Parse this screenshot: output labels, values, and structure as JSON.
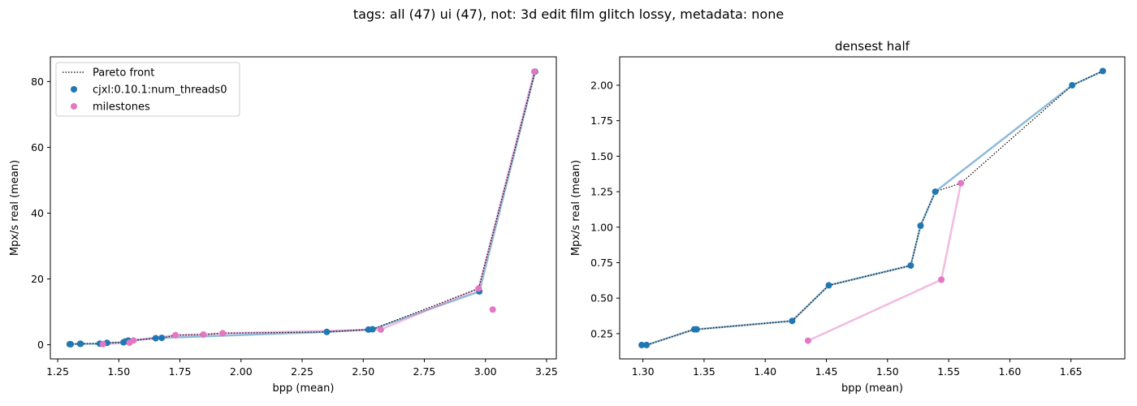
{
  "suptitle": "tags: all (47) ui (47), not: 3d edit film glitch lossy, metadata: none",
  "colors": {
    "series_blue": "#1f77b4",
    "series_pink": "#e377c2",
    "pareto": "#000000"
  },
  "chart_data": [
    {
      "type": "scatter",
      "title": "",
      "xlabel": "bpp (mean)",
      "ylabel": "Mpx/s real (mean)",
      "xlim": [
        1.22,
        3.29
      ],
      "ylim": [
        -4.3,
        87.5
      ],
      "xticks": [
        "1.25",
        "1.50",
        "1.75",
        "2.00",
        "2.25",
        "2.50",
        "2.75",
        "3.00",
        "3.25"
      ],
      "yticks": [
        "0",
        "20",
        "40",
        "60",
        "80"
      ],
      "grid": false,
      "legend_position": "upper left",
      "legend": [
        {
          "label": "Pareto front",
          "kind": "line"
        },
        {
          "label": "cjxl:0.10.1:num_threads0",
          "kind": "marker"
        },
        {
          "label": "milestones",
          "kind": "marker"
        }
      ],
      "series": [
        {
          "name": "cjxl:0.10.1:num_threads0",
          "color_key": "series_blue",
          "points": [
            [
              1.299,
              0.17
            ],
            [
              1.303,
              0.17
            ],
            [
              1.342,
              0.28
            ],
            [
              1.344,
              0.28
            ],
            [
              1.422,
              0.34
            ],
            [
              1.452,
              0.59
            ],
            [
              1.519,
              0.73
            ],
            [
              1.527,
              1.01
            ],
            [
              1.539,
              1.25
            ],
            [
              1.651,
              2.0
            ],
            [
              1.676,
              2.1
            ],
            [
              2.351,
              3.9
            ],
            [
              2.521,
              4.6
            ],
            [
              2.538,
              4.7
            ],
            [
              2.975,
              16.2
            ],
            [
              3.203,
              83.0
            ]
          ],
          "line_points": [
            [
              1.299,
              0.17
            ],
            [
              1.303,
              0.17
            ],
            [
              1.342,
              0.28
            ],
            [
              1.344,
              0.28
            ],
            [
              1.422,
              0.34
            ],
            [
              1.452,
              0.59
            ],
            [
              1.519,
              0.73
            ],
            [
              1.527,
              1.01
            ],
            [
              1.539,
              1.25
            ],
            [
              1.651,
              2.0
            ],
            [
              1.676,
              2.1
            ],
            [
              2.351,
              3.9
            ],
            [
              2.521,
              4.6
            ],
            [
              2.538,
              4.7
            ],
            [
              2.975,
              16.2
            ],
            [
              3.203,
              83.0
            ]
          ]
        },
        {
          "name": "milestones",
          "color_key": "series_pink",
          "points": [
            [
              1.435,
              0.2
            ],
            [
              1.544,
              0.63
            ],
            [
              1.56,
              1.31
            ],
            [
              1.732,
              2.9
            ],
            [
              1.846,
              3.1
            ],
            [
              1.925,
              3.5
            ],
            [
              2.572,
              4.6
            ],
            [
              2.972,
              17.1
            ],
            [
              3.03,
              10.7
            ],
            [
              3.2,
              83.0
            ]
          ],
          "line_points": [
            [
              1.435,
              0.2
            ],
            [
              1.544,
              0.63
            ],
            [
              1.56,
              1.31
            ],
            [
              1.732,
              2.9
            ],
            [
              1.846,
              3.1
            ],
            [
              1.925,
              3.5
            ],
            [
              2.572,
              4.6
            ],
            [
              2.972,
              17.1
            ],
            [
              3.2,
              83.0
            ]
          ]
        }
      ],
      "pareto_front": [
        [
          1.299,
          0.17
        ],
        [
          1.303,
          0.17
        ],
        [
          1.342,
          0.28
        ],
        [
          1.344,
          0.28
        ],
        [
          1.422,
          0.34
        ],
        [
          1.452,
          0.59
        ],
        [
          1.519,
          0.73
        ],
        [
          1.527,
          1.01
        ],
        [
          1.539,
          1.25
        ],
        [
          1.56,
          1.31
        ],
        [
          1.651,
          2.0
        ],
        [
          1.676,
          2.1
        ],
        [
          1.732,
          2.9
        ],
        [
          1.846,
          3.1
        ],
        [
          1.925,
          3.5
        ],
        [
          2.351,
          3.9
        ],
        [
          2.521,
          4.6
        ],
        [
          2.538,
          4.7
        ],
        [
          2.972,
          17.1
        ],
        [
          3.203,
          83.0
        ]
      ]
    },
    {
      "type": "scatter",
      "title": "densest half",
      "xlabel": "bpp (mean)",
      "ylabel": "Mpx/s real (mean)",
      "xlim": [
        1.281,
        1.694
      ],
      "ylim": [
        0.072,
        2.2
      ],
      "xticks": [
        "1.30",
        "1.35",
        "1.40",
        "1.45",
        "1.50",
        "1.55",
        "1.60",
        "1.65"
      ],
      "yticks": [
        "0.25",
        "0.50",
        "0.75",
        "1.00",
        "1.25",
        "1.50",
        "1.75",
        "2.00"
      ],
      "grid": false,
      "series": [
        {
          "name": "cjxl:0.10.1:num_threads0",
          "color_key": "series_blue",
          "points": [
            [
              1.299,
              0.17
            ],
            [
              1.303,
              0.17
            ],
            [
              1.342,
              0.28
            ],
            [
              1.344,
              0.28
            ],
            [
              1.422,
              0.34
            ],
            [
              1.452,
              0.59
            ],
            [
              1.519,
              0.73
            ],
            [
              1.527,
              1.01
            ],
            [
              1.539,
              1.25
            ],
            [
              1.651,
              2.0
            ],
            [
              1.676,
              2.1
            ]
          ],
          "line_points": [
            [
              1.299,
              0.17
            ],
            [
              1.303,
              0.17
            ],
            [
              1.342,
              0.28
            ],
            [
              1.344,
              0.28
            ],
            [
              1.422,
              0.34
            ],
            [
              1.452,
              0.59
            ],
            [
              1.519,
              0.73
            ],
            [
              1.527,
              1.01
            ],
            [
              1.539,
              1.25
            ],
            [
              1.651,
              2.0
            ],
            [
              1.676,
              2.1
            ]
          ]
        },
        {
          "name": "milestones",
          "color_key": "series_pink",
          "points": [
            [
              1.435,
              0.2
            ],
            [
              1.544,
              0.63
            ],
            [
              1.56,
              1.31
            ]
          ],
          "line_points": [
            [
              1.435,
              0.2
            ],
            [
              1.544,
              0.63
            ],
            [
              1.56,
              1.31
            ]
          ]
        }
      ],
      "pareto_front": [
        [
          1.299,
          0.17
        ],
        [
          1.303,
          0.17
        ],
        [
          1.342,
          0.28
        ],
        [
          1.344,
          0.28
        ],
        [
          1.422,
          0.34
        ],
        [
          1.452,
          0.59
        ],
        [
          1.519,
          0.73
        ],
        [
          1.527,
          1.01
        ],
        [
          1.539,
          1.25
        ],
        [
          1.56,
          1.31
        ],
        [
          1.651,
          2.0
        ],
        [
          1.676,
          2.1
        ]
      ]
    }
  ]
}
